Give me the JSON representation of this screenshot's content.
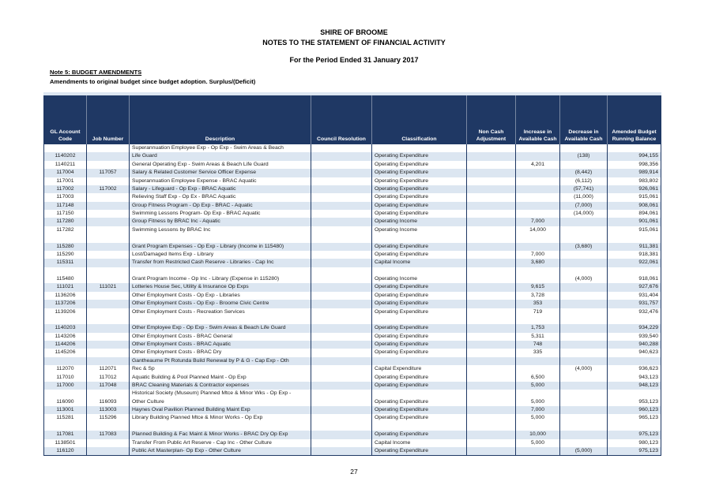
{
  "page": {
    "title1": "SHIRE OF BROOME",
    "title2": "NOTES TO THE STATEMENT OF FINANCIAL ACTIVITY",
    "title3": "For the Period Ended 31 January 2017",
    "note_heading": "Note 5: BUDGET AMENDMENTS",
    "note_subheading": "Amendments to original budget since budget adoption. Surplus/(Deficit)",
    "page_number": "27"
  },
  "colors": {
    "header_bg": "#1F3864",
    "band": "#DCE6F1",
    "border": "#1F3864"
  },
  "table": {
    "columns": [
      "GL Account Code",
      "Job Number",
      "Description",
      "Council Resolution",
      "Classification",
      "Non Cash Adjustment",
      "Increase in Available Cash",
      "Decrease in Available Cash",
      "Amended Budget Running Balance"
    ],
    "lines": [
      {
        "gl": "",
        "job": "",
        "desc": "Superannuation Employee Exp - Op Exp - Swim Areas & Beach",
        "res": "",
        "cls": "",
        "nc": "",
        "inc": "",
        "dec": "",
        "bal": "",
        "shaded": false
      },
      {
        "gl": "1140202",
        "job": "",
        "desc": "Life Guard",
        "res": "",
        "cls": "Operating Expenditure",
        "nc": "",
        "inc": "",
        "dec": "(138)",
        "bal": "994,155",
        "shaded": true
      },
      {
        "gl": "1140211",
        "job": "",
        "desc": "General Operating Exp - Swim Areas & Beach Life Guard",
        "res": "",
        "cls": "Operating Expenditure",
        "nc": "",
        "inc": "4,201",
        "dec": "",
        "bal": "998,356",
        "shaded": false
      },
      {
        "gl": "117004",
        "job": "117057",
        "desc": "Salary & Related Customer Service Officer Expense",
        "res": "",
        "cls": "Operating Expenditure",
        "nc": "",
        "inc": "",
        "dec": "(8,442)",
        "bal": "989,914",
        "shaded": true
      },
      {
        "gl": "117001",
        "job": "",
        "desc": "Superannuation Employee Expense - BRAC Aquatic",
        "res": "",
        "cls": "Operating Expenditure",
        "nc": "",
        "inc": "",
        "dec": "(6,112)",
        "bal": "983,802",
        "shaded": false
      },
      {
        "gl": "117002",
        "job": "117002",
        "desc": "Salary - Lifeguard - Op Exp - BRAC Aquatic",
        "res": "",
        "cls": "Operating Expenditure",
        "nc": "",
        "inc": "",
        "dec": "(57,741)",
        "bal": "926,061",
        "shaded": true
      },
      {
        "gl": "117003",
        "job": "",
        "desc": "Relieving Staff Exp - Op Ex - BRAC Aquatic",
        "res": "",
        "cls": "Operating Expenditure",
        "nc": "",
        "inc": "",
        "dec": "(11,000)",
        "bal": "915,061",
        "shaded": false
      },
      {
        "gl": "117148",
        "job": "",
        "desc": "Group Fitness Program - Op Exp - BRAC - Aquatic",
        "res": "",
        "cls": "Operating Expenditure",
        "nc": "",
        "inc": "",
        "dec": "(7,000)",
        "bal": "908,061",
        "shaded": true
      },
      {
        "gl": "117150",
        "job": "",
        "desc": "Swimming Lessons Program- Op Exp - BRAC Aquatic",
        "res": "",
        "cls": "Operating Expenditure",
        "nc": "",
        "inc": "",
        "dec": "(14,000)",
        "bal": "894,061",
        "shaded": false
      },
      {
        "gl": "117280",
        "job": "",
        "desc": "Group Fitness by BRAC Inc - Aquatic",
        "res": "",
        "cls": "Operating Income",
        "nc": "",
        "inc": "7,000",
        "dec": "",
        "bal": "901,061",
        "shaded": true
      },
      {
        "gl": "117282",
        "job": "",
        "desc": "Swimming Lessons by BRAC Inc",
        "res": "",
        "cls": "Operating Income",
        "nc": "",
        "inc": "14,000",
        "dec": "",
        "bal": "915,061",
        "shaded": false
      },
      {
        "gl": "",
        "job": "",
        "desc": "",
        "res": "",
        "cls": "",
        "nc": "",
        "inc": "",
        "dec": "",
        "bal": "",
        "shaded": false
      },
      {
        "gl": "115280",
        "job": "",
        "desc": "Grant Program Expenses - Op Exp - Library (Income in 115480)",
        "res": "",
        "cls": "Operating Expenditure",
        "nc": "",
        "inc": "",
        "dec": "(3,680)",
        "bal": "911,381",
        "shaded": true
      },
      {
        "gl": "115290",
        "job": "",
        "desc": "Lost/Damaged Items Exp - Library",
        "res": "",
        "cls": "Operating Expenditure",
        "nc": "",
        "inc": "7,000",
        "dec": "",
        "bal": "918,381",
        "shaded": false
      },
      {
        "gl": "115311",
        "job": "",
        "desc": "Transfer from Restricted Cash Reserve - Libraries - Cap Inc",
        "res": "",
        "cls": "Capital Income",
        "nc": "",
        "inc": "3,680",
        "dec": "",
        "bal": "922,061",
        "shaded": true
      },
      {
        "gl": "",
        "job": "",
        "desc": "",
        "res": "",
        "cls": "",
        "nc": "",
        "inc": "",
        "dec": "",
        "bal": "",
        "shaded": false
      },
      {
        "gl": "115480",
        "job": "",
        "desc": "Grant Program Income - Op Inc - Library (Expense in 115280)",
        "res": "",
        "cls": "Operating Income",
        "nc": "",
        "inc": "",
        "dec": "(4,000)",
        "bal": "918,061",
        "shaded": false
      },
      {
        "gl": "111021",
        "job": "111021",
        "desc": "Lotteries House Sec, Utility & Insurance Op Exps",
        "res": "",
        "cls": "Operating Expenditure",
        "nc": "",
        "inc": "9,615",
        "dec": "",
        "bal": "927,676",
        "shaded": true
      },
      {
        "gl": "1136206",
        "job": "",
        "desc": "Other Employment Costs - Op Exp - Libraries",
        "res": "",
        "cls": "Operating Expenditure",
        "nc": "",
        "inc": "3,728",
        "dec": "",
        "bal": "931,404",
        "shaded": false
      },
      {
        "gl": "1137206",
        "job": "",
        "desc": "Other Employment Costs - Op Exp - Broome Civic Centre",
        "res": "",
        "cls": "Operating Expenditure",
        "nc": "",
        "inc": "353",
        "dec": "",
        "bal": "931,757",
        "shaded": true
      },
      {
        "gl": "1139206",
        "job": "",
        "desc": "Other Employment Costs - Recreation Services",
        "res": "",
        "cls": "Operating Expenditure",
        "nc": "",
        "inc": "719",
        "dec": "",
        "bal": "932,476",
        "shaded": false
      },
      {
        "gl": "",
        "job": "",
        "desc": "",
        "res": "",
        "cls": "",
        "nc": "",
        "inc": "",
        "dec": "",
        "bal": "",
        "shaded": false
      },
      {
        "gl": "1140203",
        "job": "",
        "desc": "Other Employee Exp - Op Exp - Swim Areas & Beach Life Guard",
        "res": "",
        "cls": "Operating Expenditure",
        "nc": "",
        "inc": "1,753",
        "dec": "",
        "bal": "934,229",
        "shaded": true
      },
      {
        "gl": "1143206",
        "job": "",
        "desc": "Other Employment Costs - BRAC General",
        "res": "",
        "cls": "Operating Expenditure",
        "nc": "",
        "inc": "5,311",
        "dec": "",
        "bal": "939,540",
        "shaded": false
      },
      {
        "gl": "1144206",
        "job": "",
        "desc": "Other Employment Costs - BRAC Aquatic",
        "res": "",
        "cls": "Operating Expenditure",
        "nc": "",
        "inc": "748",
        "dec": "",
        "bal": "940,288",
        "shaded": true
      },
      {
        "gl": "1145206",
        "job": "",
        "desc": "Other Employment Costs - BRAC Dry",
        "res": "",
        "cls": "Operating Expenditure",
        "nc": "",
        "inc": "335",
        "dec": "",
        "bal": "940,623",
        "shaded": false
      },
      {
        "gl": "",
        "job": "",
        "desc": "Gantheaume Pt Rotunda Build Renewal by P & G - Cap Exp - Oth",
        "res": "",
        "cls": "",
        "nc": "",
        "inc": "",
        "dec": "",
        "bal": "",
        "shaded": true
      },
      {
        "gl": "112070",
        "job": "112071",
        "desc": "Rec & Sp",
        "res": "",
        "cls": "Capital Expenditure",
        "nc": "",
        "inc": "",
        "dec": "(4,000)",
        "bal": "936,623",
        "shaded": false
      },
      {
        "gl": "117010",
        "job": "117012",
        "desc": "Aquatic Building & Pool Planned Maint - Op Exp",
        "res": "",
        "cls": "Operating Expenditure",
        "nc": "",
        "inc": "6,500",
        "dec": "",
        "bal": "943,123",
        "shaded": false
      },
      {
        "gl": "117000",
        "job": "117048",
        "desc": "BRAC Cleaning Materials & Contractor expenses",
        "res": "",
        "cls": "Operating Expenditure",
        "nc": "",
        "inc": "5,000",
        "dec": "",
        "bal": "948,123",
        "shaded": true
      },
      {
        "gl": "",
        "job": "",
        "desc": "Historical Society (Museum) Planned Mtce & Minor Wks - Op Exp -",
        "res": "",
        "cls": "",
        "nc": "",
        "inc": "",
        "dec": "",
        "bal": "",
        "shaded": false
      },
      {
        "gl": "116090",
        "job": "116093",
        "desc": "Other Culture",
        "res": "",
        "cls": "Operating Expenditure",
        "nc": "",
        "inc": "5,000",
        "dec": "",
        "bal": "953,123",
        "shaded": false
      },
      {
        "gl": "113001",
        "job": "113003",
        "desc": "Haynes Oval Pavilion Planned Building Maint Exp",
        "res": "",
        "cls": "Operating Expenditure",
        "nc": "",
        "inc": "7,000",
        "dec": "",
        "bal": "960,123",
        "shaded": true
      },
      {
        "gl": "115281",
        "job": "115296",
        "desc": "Library Building Planned Mtce & Minor Works - Op Exp",
        "res": "",
        "cls": "Operating Expenditure",
        "nc": "",
        "inc": "5,000",
        "dec": "",
        "bal": "965,123",
        "shaded": false
      },
      {
        "gl": "",
        "job": "",
        "desc": "",
        "res": "",
        "cls": "",
        "nc": "",
        "inc": "",
        "dec": "",
        "bal": "",
        "shaded": false
      },
      {
        "gl": "117081",
        "job": "117083",
        "desc": "Planned Building & Fac Maint & Minor Works - BRAC Dry Op Exp",
        "res": "",
        "cls": "Operating Expenditure",
        "nc": "",
        "inc": "10,000",
        "dec": "",
        "bal": "975,123",
        "shaded": true
      },
      {
        "gl": "1138501",
        "job": "",
        "desc": "Transfer From Public Art Reserve - Cap Inc - Other Culture",
        "res": "",
        "cls": "Capital Income",
        "nc": "",
        "inc": "5,000",
        "dec": "",
        "bal": "980,123",
        "shaded": false
      },
      {
        "gl": "116120",
        "job": "",
        "desc": "Public Art Masterplan- Op Exp - Other Culture",
        "res": "",
        "cls": "Operating Expenditure",
        "nc": "",
        "inc": "",
        "dec": "(5,000)",
        "bal": "975,123",
        "shaded": true
      }
    ]
  }
}
